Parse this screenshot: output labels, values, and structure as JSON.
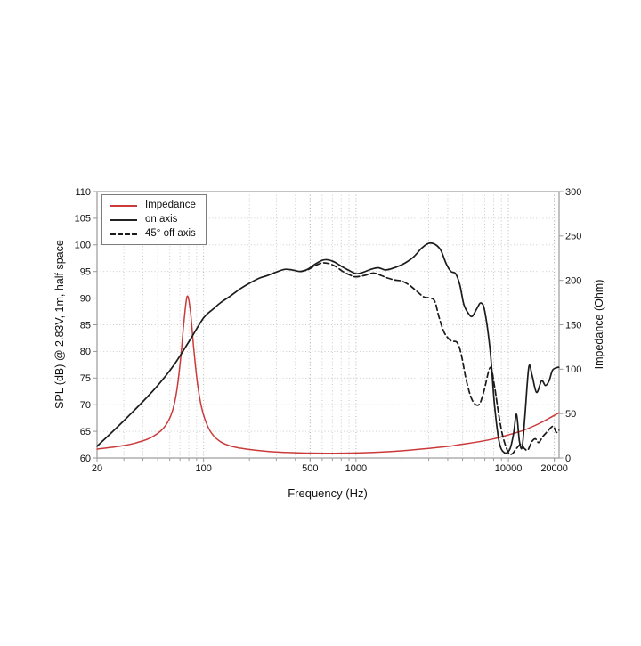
{
  "figure": {
    "background": "#ffffff",
    "frame_color": "#9a9a9a",
    "grid_color": "#c4c4c4",
    "text_color": "#111111"
  },
  "chart_data": {
    "type": "line",
    "xlabel": "Frequency (Hz)",
    "ylabel_left": "SPL (dB) @ 2.83V, 1m, half space",
    "ylabel_right": "Impedance (Ohm)",
    "x_scale": "log",
    "x_range": [
      20,
      21500
    ],
    "x_major_ticks": [
      20,
      100,
      500,
      1000,
      10000,
      20000
    ],
    "x_major_tick_labels": [
      "20",
      "100",
      "500",
      "1000",
      "10000",
      "20000"
    ],
    "y_left_range": [
      60,
      110
    ],
    "y_left_ticks": [
      60,
      65,
      70,
      75,
      80,
      85,
      90,
      95,
      100,
      105,
      110
    ],
    "y_right_range": [
      0,
      300
    ],
    "y_right_ticks": [
      0,
      50,
      100,
      150,
      200,
      250,
      300
    ],
    "grid": "dotted",
    "legend_position": "top-left",
    "series": [
      {
        "name": "Impedance",
        "axis": "right",
        "unit": "Ohm",
        "color": "#cb3a3a",
        "style": "solid",
        "points": [
          [
            20,
            10
          ],
          [
            25,
            12
          ],
          [
            30,
            14
          ],
          [
            36,
            17
          ],
          [
            44,
            22
          ],
          [
            52,
            30
          ],
          [
            58,
            40
          ],
          [
            63,
            55
          ],
          [
            67,
            78
          ],
          [
            71,
            115
          ],
          [
            74,
            150
          ],
          [
            78,
            182
          ],
          [
            82,
            165
          ],
          [
            86,
            125
          ],
          [
            91,
            85
          ],
          [
            97,
            57
          ],
          [
            105,
            38
          ],
          [
            115,
            26
          ],
          [
            130,
            18
          ],
          [
            150,
            13.5
          ],
          [
            175,
            11
          ],
          [
            200,
            9.5
          ],
          [
            250,
            7.8
          ],
          [
            300,
            6.8
          ],
          [
            400,
            5.9
          ],
          [
            500,
            5.5
          ],
          [
            650,
            5.3
          ],
          [
            800,
            5.4
          ],
          [
            1000,
            5.7
          ],
          [
            1300,
            6.3
          ],
          [
            1700,
            7.3
          ],
          [
            2200,
            8.7
          ],
          [
            3000,
            10.8
          ],
          [
            4000,
            13
          ],
          [
            5000,
            15.5
          ],
          [
            6500,
            18.5
          ],
          [
            8000,
            21.5
          ],
          [
            10000,
            26
          ],
          [
            12500,
            31
          ],
          [
            16000,
            39
          ],
          [
            20000,
            48
          ],
          [
            21500,
            51
          ]
        ]
      },
      {
        "name": "on axis",
        "axis": "left",
        "unit": "dB",
        "color": "#1c1c1c",
        "style": "solid",
        "points": [
          [
            20,
            62.2
          ],
          [
            25,
            64.8
          ],
          [
            32,
            67.8
          ],
          [
            40,
            70.6
          ],
          [
            50,
            73.6
          ],
          [
            63,
            77.2
          ],
          [
            80,
            81.8
          ],
          [
            100,
            86.3
          ],
          [
            115,
            87.9
          ],
          [
            130,
            89.2
          ],
          [
            150,
            90.4
          ],
          [
            175,
            91.8
          ],
          [
            200,
            92.8
          ],
          [
            230,
            93.7
          ],
          [
            260,
            94.2
          ],
          [
            300,
            94.9
          ],
          [
            340,
            95.4
          ],
          [
            380,
            95.3
          ],
          [
            430,
            95.0
          ],
          [
            480,
            95.4
          ],
          [
            540,
            96.4
          ],
          [
            600,
            97.1
          ],
          [
            650,
            97.2
          ],
          [
            720,
            96.8
          ],
          [
            800,
            96.0
          ],
          [
            900,
            95.2
          ],
          [
            1000,
            94.6
          ],
          [
            1100,
            94.8
          ],
          [
            1250,
            95.4
          ],
          [
            1400,
            95.7
          ],
          [
            1550,
            95.3
          ],
          [
            1700,
            95.5
          ],
          [
            1900,
            96.0
          ],
          [
            2100,
            96.6
          ],
          [
            2400,
            97.8
          ],
          [
            2700,
            99.4
          ],
          [
            3000,
            100.3
          ],
          [
            3300,
            100.1
          ],
          [
            3600,
            99.0
          ],
          [
            3900,
            96.5
          ],
          [
            4200,
            95.0
          ],
          [
            4500,
            94.6
          ],
          [
            4800,
            92.5
          ],
          [
            5100,
            88.8
          ],
          [
            5500,
            87.0
          ],
          [
            5800,
            86.6
          ],
          [
            6200,
            88.0
          ],
          [
            6600,
            89.1
          ],
          [
            7000,
            87.5
          ],
          [
            7600,
            80.0
          ],
          [
            8100,
            70.0
          ],
          [
            8700,
            63.0
          ],
          [
            9400,
            61.0
          ],
          [
            10200,
            61.6
          ],
          [
            10800,
            64.5
          ],
          [
            11300,
            68.2
          ],
          [
            11800,
            63.2
          ],
          [
            12300,
            62.0
          ],
          [
            12800,
            67.5
          ],
          [
            13600,
            77.0
          ],
          [
            14300,
            75.5
          ],
          [
            15300,
            72.3
          ],
          [
            16500,
            74.5
          ],
          [
            17500,
            73.6
          ],
          [
            18500,
            74.5
          ],
          [
            19500,
            76.5
          ],
          [
            21000,
            77.0
          ],
          [
            21500,
            77.0
          ]
        ]
      },
      {
        "name": "45° off axis",
        "axis": "left",
        "unit": "dB",
        "color": "#1a1a1a",
        "style": "dashed",
        "points": [
          [
            430,
            95.0
          ],
          [
            480,
            95.3
          ],
          [
            540,
            96.1
          ],
          [
            600,
            96.6
          ],
          [
            660,
            96.5
          ],
          [
            730,
            96.0
          ],
          [
            820,
            95.0
          ],
          [
            920,
            94.3
          ],
          [
            1000,
            94.0
          ],
          [
            1150,
            94.3
          ],
          [
            1300,
            94.7
          ],
          [
            1450,
            94.3
          ],
          [
            1600,
            93.8
          ],
          [
            1800,
            93.4
          ],
          [
            2000,
            93.2
          ],
          [
            2250,
            92.4
          ],
          [
            2500,
            91.3
          ],
          [
            2800,
            90.2
          ],
          [
            3100,
            90.0
          ],
          [
            3300,
            89.3
          ],
          [
            3500,
            86.5
          ],
          [
            3800,
            83.5
          ],
          [
            4200,
            82.0
          ],
          [
            4600,
            81.7
          ],
          [
            4900,
            79.5
          ],
          [
            5300,
            74.5
          ],
          [
            5800,
            70.8
          ],
          [
            6400,
            70.0
          ],
          [
            6900,
            72.5
          ],
          [
            7600,
            77.0
          ],
          [
            8100,
            73.5
          ],
          [
            8600,
            68.5
          ],
          [
            9200,
            64.0
          ],
          [
            10000,
            61.0
          ],
          [
            10600,
            60.8
          ],
          [
            11300,
            61.8
          ],
          [
            12100,
            62.6
          ],
          [
            12700,
            61.8
          ],
          [
            13400,
            61.5
          ],
          [
            14200,
            63.0
          ],
          [
            15000,
            63.6
          ],
          [
            15800,
            62.9
          ],
          [
            16800,
            64.0
          ],
          [
            17800,
            64.8
          ],
          [
            19000,
            65.7
          ],
          [
            19800,
            65.9
          ],
          [
            20600,
            64.8
          ],
          [
            21500,
            65.2
          ]
        ]
      }
    ]
  }
}
